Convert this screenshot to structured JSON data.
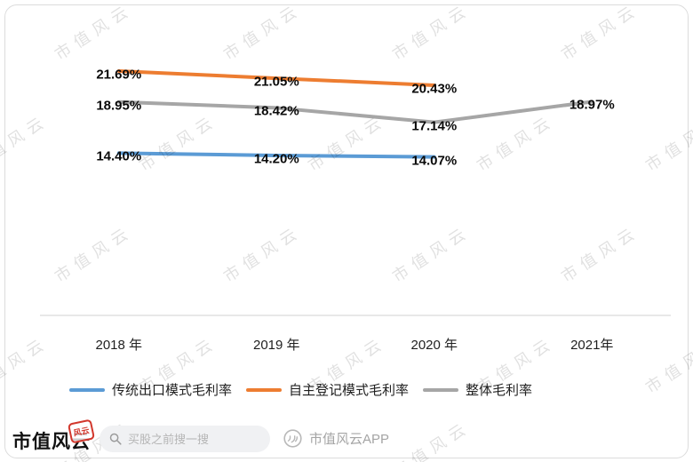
{
  "watermark": {
    "text": "市值风云"
  },
  "chart_data": {
    "type": "line",
    "title": "",
    "categories": [
      "2018 年",
      "2019 年",
      "2020 年",
      "2021年"
    ],
    "series": [
      {
        "name": "传统出口模式毛利率",
        "color": "#5B9BD5",
        "values": [
          14.4,
          14.2,
          14.07,
          null
        ]
      },
      {
        "name": "自主登记模式毛利率",
        "color": "#ED7D31",
        "values": [
          21.69,
          21.05,
          20.43,
          null
        ]
      },
      {
        "name": "整体毛利率",
        "color": "#A6A6A6",
        "values": [
          18.95,
          18.42,
          17.14,
          18.97
        ]
      }
    ],
    "value_suffix": "%",
    "ylim": [
      0,
      25
    ],
    "grid": false,
    "legend_position": "bottom",
    "xlabel": "",
    "ylabel": ""
  },
  "footer": {
    "brand": "市值风云",
    "seal_text": "风云",
    "search_placeholder": "买股之前搜一搜",
    "app_label": "市值风云APP"
  }
}
